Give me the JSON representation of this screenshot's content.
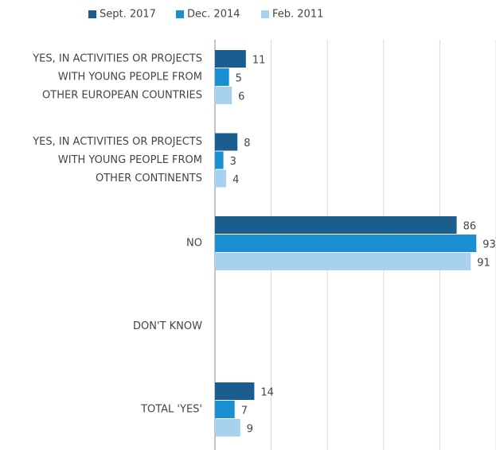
{
  "chart_data": {
    "type": "hbar",
    "categories": [
      [
        "YES, IN ACTIVITIES OR PROJECTS",
        "WITH YOUNG PEOPLE FROM",
        "OTHER EUROPEAN COUNTRIES"
      ],
      [
        "YES, IN ACTIVITIES OR PROJECTS",
        "WITH YOUNG PEOPLE FROM",
        "OTHER CONTINENTS"
      ],
      [
        "NO"
      ],
      [
        "DON'T KNOW"
      ],
      [
        "TOTAL 'YES'"
      ]
    ],
    "series": [
      {
        "name": "Sept. 2017",
        "color": "#1b5d8e",
        "values": [
          11,
          8,
          86,
          null,
          14
        ]
      },
      {
        "name": "Dec. 2014",
        "color": "#1a90d2",
        "values": [
          5,
          3,
          93,
          null,
          7
        ]
      },
      {
        "name": "Feb. 2011",
        "color": "#a8d0ef",
        "values": [
          6,
          4,
          91,
          null,
          9
        ]
      }
    ],
    "xlim": [
      0,
      100
    ],
    "xticks": [
      0,
      20,
      40,
      60,
      80,
      100
    ],
    "grid": true,
    "legend": "top"
  }
}
